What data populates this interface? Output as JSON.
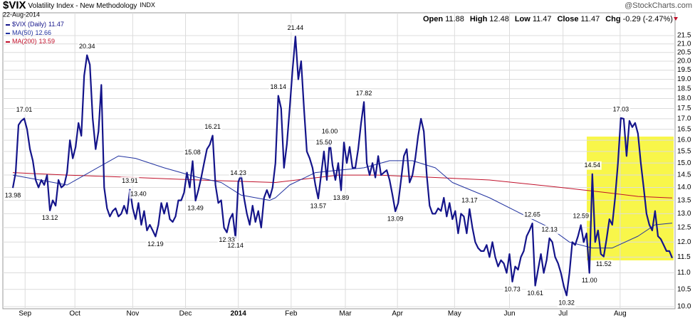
{
  "header": {
    "symbol": "$VIX",
    "name": "Volatility Index - New Methodology",
    "exchange": "INDX",
    "date": "22-Aug-2014",
    "source": "@StockCharts.com",
    "quote": [
      {
        "label": "Open",
        "value": 11.88
      },
      {
        "label": "High",
        "value": 12.48
      },
      {
        "label": "Low",
        "value": 11.47
      },
      {
        "label": "Close",
        "value": 11.47
      },
      {
        "label": "Chg",
        "value": "-0.29 (-2.47%)"
      }
    ]
  },
  "chart_data": {
    "type": "line",
    "log_scale": true,
    "grid": true,
    "legend": "top-left",
    "ylim": [
      10,
      21.5
    ],
    "yticks": [
      {
        "value": 10,
        "label": "10.0"
      },
      10.5,
      {
        "value": 11,
        "label": "11.0"
      },
      11.5,
      {
        "value": 12,
        "label": "12.0"
      },
      12.5,
      {
        "value": 13,
        "label": "13.0"
      },
      13.5,
      {
        "value": 14,
        "label": "14.0"
      },
      14.5,
      {
        "value": 15,
        "label": "15.0"
      },
      15.5,
      {
        "value": 16,
        "label": "16.0"
      },
      16.5,
      {
        "value": 17,
        "label": "17.0"
      },
      17.5,
      {
        "value": 18,
        "label": "18.0"
      },
      18.5,
      {
        "value": 19,
        "label": "19.0"
      },
      19.5,
      {
        "value": 20,
        "label": "20.0"
      },
      20.5,
      {
        "value": 21,
        "label": "21.0"
      },
      21.5
    ],
    "xlim": [
      0,
      231
    ],
    "xticks": [
      {
        "value": 4.3,
        "label": "Sep"
      },
      {
        "value": 21.75,
        "label": "Oct"
      },
      {
        "value": 42,
        "label": "Nov"
      },
      {
        "value": 60.5,
        "label": "Dec"
      },
      {
        "value": 79,
        "label": "2014"
      },
      {
        "value": 97.5,
        "label": "Feb"
      },
      {
        "value": 116.5,
        "label": "Mar"
      },
      {
        "value": 134.75,
        "label": "Apr"
      },
      {
        "value": 154.75,
        "label": "May"
      },
      {
        "value": 174,
        "label": "Jun"
      },
      {
        "value": 192.75,
        "label": "Jul"
      },
      {
        "value": 212.75,
        "label": "Aug"
      }
    ],
    "series": [
      {
        "name": "$VIX (Daily)",
        "last": 11.47,
        "color": "#14148a",
        "width": 2.2,
        "values": [
          13.98,
          14.6,
          16.7,
          16.9,
          17.01,
          16.5,
          15.6,
          15.1,
          14.3,
          14.0,
          14.3,
          14.1,
          14.5,
          13.12,
          13.5,
          13.3,
          14.3,
          14.0,
          14.1,
          14.6,
          16.0,
          15.2,
          15.7,
          16.8,
          16.2,
          19.2,
          20.34,
          19.8,
          17.0,
          15.6,
          16.4,
          18.7,
          14.0,
          13.2,
          12.9,
          13.1,
          13.2,
          12.9,
          13.0,
          13.3,
          13.0,
          13.91,
          13.2,
          12.8,
          13.4,
          12.6,
          13.1,
          12.4,
          12.6,
          12.4,
          12.19,
          12.6,
          13.4,
          13.0,
          13.4,
          12.8,
          12.7,
          12.9,
          13.5,
          13.5,
          13.8,
          14.6,
          14.0,
          15.08,
          13.49,
          13.9,
          14.4,
          15.0,
          15.6,
          15.8,
          16.21,
          14.1,
          13.4,
          13.5,
          12.5,
          12.33,
          12.8,
          13.0,
          12.14,
          14.23,
          14.5,
          13.6,
          13.0,
          12.6,
          13.3,
          12.7,
          13.1,
          12.5,
          13.6,
          13.9,
          13.6,
          14.0,
          15.0,
          18.14,
          17.5,
          14.8,
          15.8,
          17.5,
          19.5,
          21.44,
          19.0,
          20.0,
          17.5,
          15.5,
          15.2,
          14.8,
          14.1,
          13.57,
          14.5,
          15.5,
          14.3,
          16.0,
          14.9,
          14.3,
          15.0,
          13.89,
          15.9,
          15.0,
          15.7,
          14.8,
          14.8,
          15.6,
          16.8,
          17.82,
          15.0,
          14.5,
          15.0,
          14.4,
          15.3,
          14.5,
          14.6,
          14.7,
          14.3,
          13.7,
          13.09,
          13.4,
          14.3,
          15.3,
          15.6,
          14.2,
          14.5,
          15.2,
          16.2,
          17.0,
          16.4,
          14.5,
          13.3,
          13.0,
          13.0,
          13.2,
          13.1,
          13.6,
          12.9,
          13.4,
          12.8,
          13.1,
          12.3,
          13.0,
          12.9,
          12.3,
          13.17,
          12.5,
          12.0,
          11.8,
          11.7,
          11.7,
          11.9,
          11.5,
          12.0,
          11.5,
          11.2,
          11.4,
          11.3,
          11.0,
          11.6,
          10.73,
          11.2,
          11.1,
          11.5,
          11.7,
          12.2,
          12.4,
          12.65,
          10.61,
          11.1,
          11.6,
          11.0,
          11.4,
          12.13,
          12.0,
          11.5,
          11.3,
          11.0,
          10.6,
          10.32,
          11.0,
          12.0,
          11.9,
          12.2,
          12.59,
          12.0,
          12.3,
          11.0,
          14.54,
          12.0,
          12.4,
          11.6,
          11.52,
          12.1,
          12.8,
          12.6,
          13.6,
          15.0,
          17.03,
          17.0,
          15.3,
          16.9,
          16.6,
          16.8,
          16.3,
          15.0,
          14.0,
          13.0,
          12.6,
          12.4,
          13.1,
          12.2,
          12.1,
          11.9,
          11.7,
          11.7,
          11.47
        ]
      },
      {
        "name": "MA(50)",
        "last": 12.66,
        "color": "#2233a0",
        "width": 1,
        "x": [
          0,
          19,
          37,
          43,
          53,
          65,
          73,
          80,
          90,
          92,
          97,
          106,
          114,
          123,
          132,
          140,
          148,
          154,
          167,
          180,
          188,
          195,
          203,
          210,
          219,
          225,
          231
        ],
        "values": [
          14.5,
          14.1,
          15.3,
          15.2,
          14.8,
          14.4,
          14.2,
          13.7,
          13.5,
          13.6,
          14.1,
          14.6,
          14.7,
          14.8,
          15.1,
          15.1,
          14.8,
          14.2,
          13.6,
          12.9,
          12.5,
          12.0,
          11.8,
          11.8,
          12.2,
          12.6,
          12.66
        ]
      },
      {
        "name": "MA(200)",
        "last": 13.59,
        "color": "#c0102a",
        "width": 1,
        "x": [
          0,
          19,
          43,
          65,
          92,
          114,
          128,
          148,
          167,
          192,
          208,
          219,
          231
        ],
        "values": [
          14.6,
          14.5,
          14.4,
          14.3,
          14.2,
          14.5,
          14.5,
          14.4,
          14.3,
          14.0,
          13.8,
          13.65,
          13.59
        ]
      }
    ],
    "annotations": [
      {
        "x": 0,
        "value": 13.98,
        "label": "13.98"
      },
      {
        "x": 4,
        "value": 17.01,
        "label": "17.01"
      },
      {
        "x": 13,
        "value": 13.12,
        "label": "13.12"
      },
      {
        "x": 26,
        "value": 20.34,
        "label": "20.34"
      },
      {
        "x": 41,
        "value": 13.91,
        "label": "13.91"
      },
      {
        "x": 44,
        "value": 13.4,
        "label": "13.40"
      },
      {
        "x": 50,
        "value": 12.19,
        "label": "12.19"
      },
      {
        "x": 63,
        "value": 15.08,
        "label": "15.08"
      },
      {
        "x": 64,
        "value": 13.49,
        "label": "13.49"
      },
      {
        "x": 70,
        "value": 16.21,
        "label": "16.21"
      },
      {
        "x": 75,
        "value": 12.33,
        "label": "12.33"
      },
      {
        "x": 79,
        "value": 14.23,
        "label": "14.23"
      },
      {
        "x": 78,
        "value": 12.14,
        "label": "12.14"
      },
      {
        "x": 93,
        "value": 18.14,
        "label": "18.14"
      },
      {
        "x": 99,
        "value": 21.44,
        "label": "21.44"
      },
      {
        "x": 109,
        "value": 15.5,
        "label": "15.50"
      },
      {
        "x": 107,
        "value": 13.57,
        "label": "13.57"
      },
      {
        "x": 111,
        "value": 16,
        "label": "16.00"
      },
      {
        "x": 115,
        "value": 13.89,
        "label": "13.89"
      },
      {
        "x": 123,
        "value": 17.82,
        "label": "17.82"
      },
      {
        "x": 134,
        "value": 13.09,
        "label": "13.09"
      },
      {
        "x": 160,
        "value": 13.17,
        "label": "13.17"
      },
      {
        "x": 182,
        "value": 12.65,
        "label": "12.65"
      },
      {
        "x": 188,
        "value": 12.13,
        "label": "12.13"
      },
      {
        "x": 175,
        "value": 10.73,
        "label": "10.73"
      },
      {
        "x": 183,
        "value": 10.61,
        "label": "10.61"
      },
      {
        "x": 194,
        "value": 10.32,
        "label": "10.32"
      },
      {
        "x": 199,
        "value": 12.59,
        "label": "12.59"
      },
      {
        "x": 202,
        "value": 11,
        "label": "11.00"
      },
      {
        "x": 203,
        "value": 14.54,
        "label": "14.54"
      },
      {
        "x": 207,
        "value": 11.52,
        "label": "11.52"
      },
      {
        "x": 213,
        "value": 17.03,
        "label": "17.03"
      }
    ]
  }
}
